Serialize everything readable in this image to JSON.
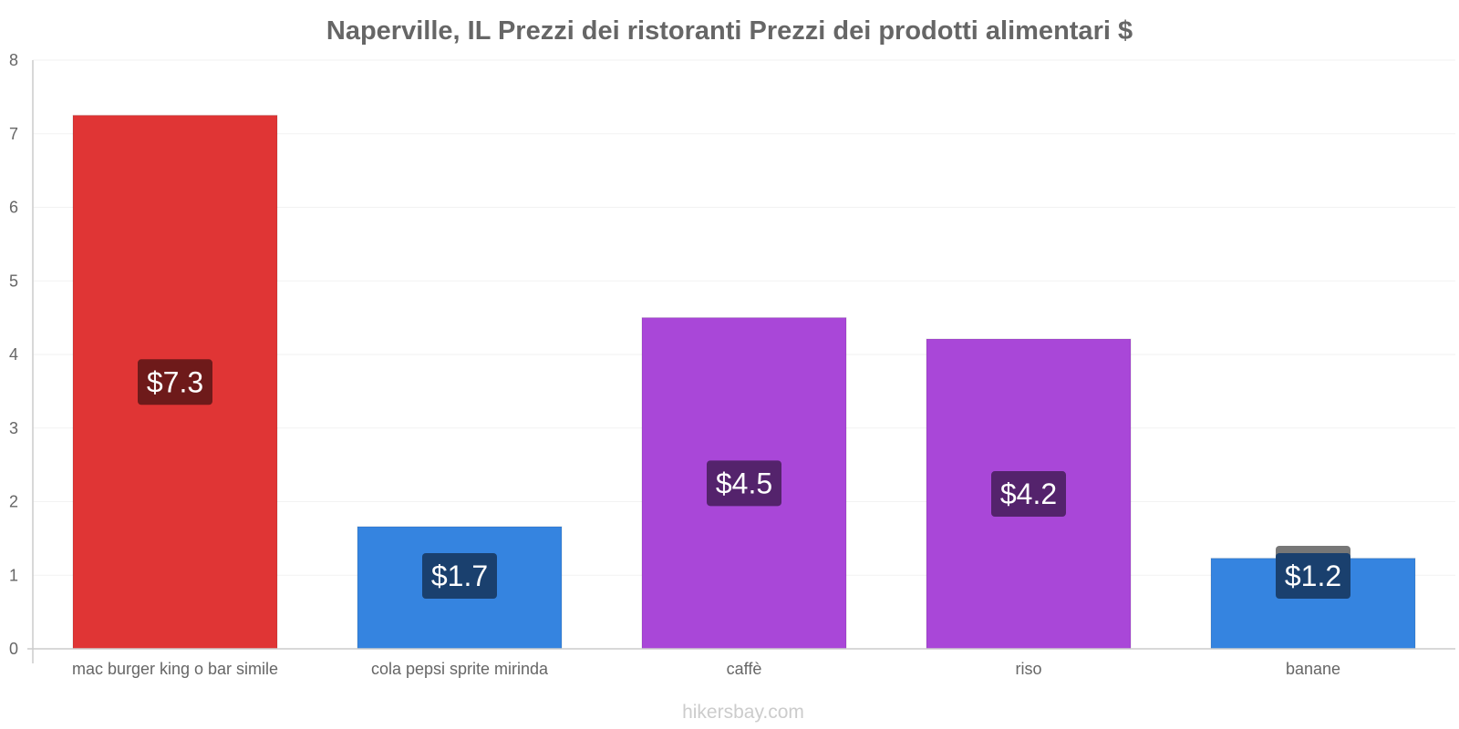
{
  "chart_data": {
    "type": "bar",
    "title": "Naperville, IL Prezzi dei ristoranti Prezzi dei prodotti alimentari $",
    "categories": [
      "mac burger king o bar simile",
      "cola pepsi sprite mirinda",
      "caffè",
      "riso",
      "banane"
    ],
    "values": [
      7.25,
      1.66,
      4.5,
      4.21,
      1.23
    ],
    "value_labels": [
      "$7.3",
      "$1.7",
      "$4.5",
      "$4.2",
      "$1.2"
    ],
    "colors": [
      "#e03535",
      "#3584e0",
      "#a947d8",
      "#a947d8",
      "#3584e0"
    ],
    "label_colors": [
      "#6e1a1a",
      "#1a406e",
      "#54236c",
      "#54236c",
      "#1a406e"
    ],
    "ylim": [
      0,
      8
    ],
    "yticks": [
      "0",
      "1",
      "2",
      "3",
      "4",
      "5",
      "6",
      "7",
      "8"
    ],
    "xlabel": "",
    "ylabel": "",
    "grid": true
  },
  "footer": "hikersbay.com"
}
